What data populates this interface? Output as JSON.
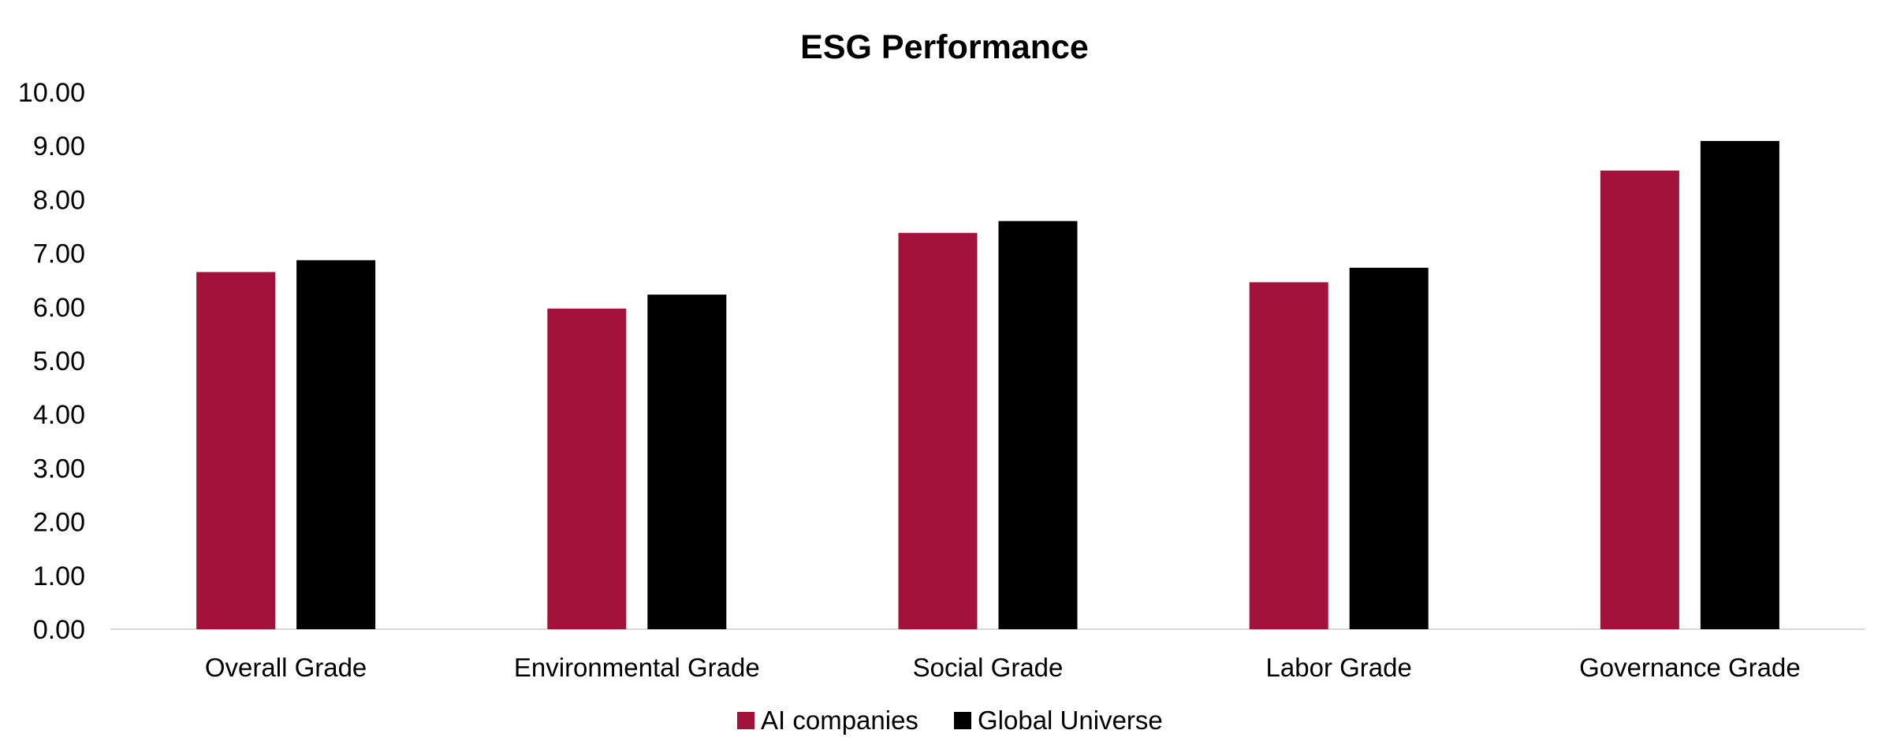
{
  "chart_data": {
    "type": "bar",
    "title": "ESG Performance",
    "xlabel": "",
    "ylabel": "",
    "categories": [
      "Overall Grade",
      "Environmental Grade",
      "Social Grade",
      "Labor Grade",
      "Governance Grade"
    ],
    "series": [
      {
        "name": "AI companies",
        "color": "#A3123A",
        "values": [
          6.65,
          5.97,
          7.38,
          6.46,
          8.54
        ]
      },
      {
        "name": "Global Universe",
        "color": "#000000",
        "values": [
          6.87,
          6.23,
          7.6,
          6.73,
          9.09
        ]
      }
    ],
    "ylim": [
      0,
      10
    ],
    "yticks": [
      "0.00",
      "1.00",
      "2.00",
      "3.00",
      "4.00",
      "5.00",
      "6.00",
      "7.00",
      "8.00",
      "9.00",
      "10.00"
    ],
    "grid": false,
    "legend_position": "bottom"
  }
}
